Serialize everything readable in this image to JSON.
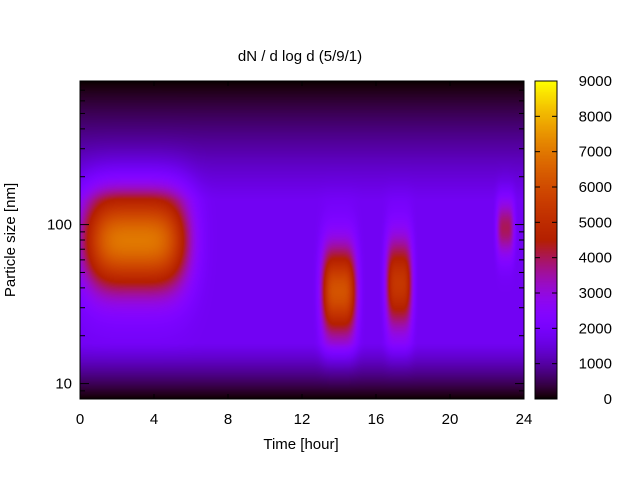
{
  "chart_data": {
    "type": "heatmap",
    "title": "dN / d log d (5/9/1)",
    "xlabel": "Time [hour]",
    "ylabel": "Particle size [nm]",
    "x_range": [
      0,
      24
    ],
    "x_ticks": [
      0,
      4,
      8,
      12,
      16,
      20,
      24
    ],
    "y_scale": "log",
    "y_range": [
      8,
      800
    ],
    "y_ticks": [
      10,
      100
    ],
    "colorbar": {
      "range": [
        0,
        9000
      ],
      "ticks": [
        0,
        1000,
        2000,
        3000,
        4000,
        5000,
        6000,
        7000,
        8000,
        9000
      ],
      "palette": "gnuplot (black-purple-red-orange-yellow)"
    },
    "grid": false,
    "features": [
      {
        "time_start": 0,
        "time_end": 6,
        "size_low_nm": 35,
        "size_high_nm": 180,
        "peak_value": 7000
      },
      {
        "time_start": 13,
        "time_end": 15,
        "size_low_nm": 18,
        "size_high_nm": 80,
        "peak_value": 6200
      },
      {
        "time_start": 16.5,
        "time_end": 18,
        "size_low_nm": 20,
        "size_high_nm": 90,
        "peak_value": 5400
      },
      {
        "time_start": 22.5,
        "time_end": 23.5,
        "size_low_nm": 60,
        "size_high_nm": 150,
        "peak_value": 4000
      }
    ],
    "background_value": 1800,
    "edge_value_small_size": 0,
    "edge_value_large_size": 0
  }
}
